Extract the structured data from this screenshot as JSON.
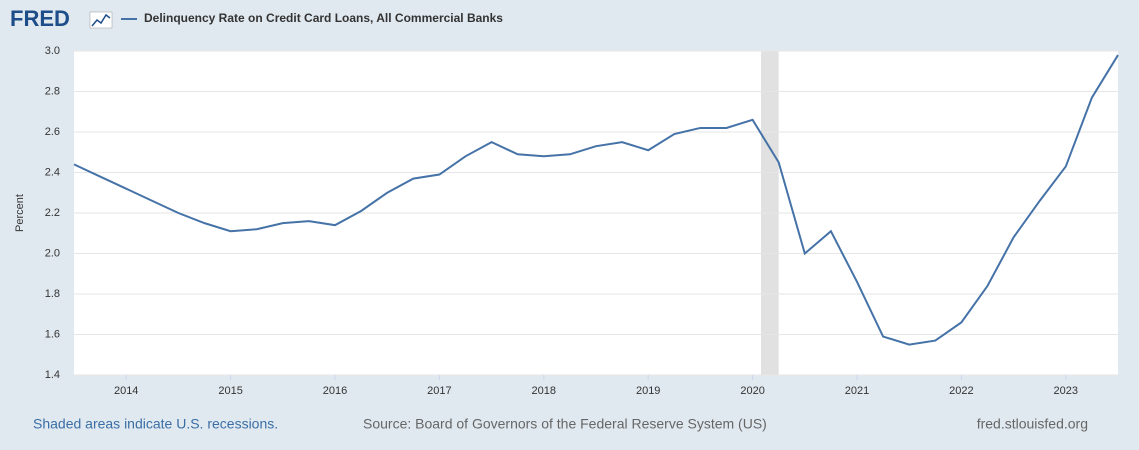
{
  "logo": "FRED",
  "footer": {
    "recessions_note": "Shaded areas indicate U.S. recessions.",
    "source": "Source: Board of Governors of the Federal Reserve System (US)",
    "site": "fred.stlouisfed.org"
  },
  "chart_data": {
    "type": "line",
    "y_label": "Percent",
    "x": [
      2013.5,
      2013.75,
      2014,
      2014.25,
      2014.5,
      2014.75,
      2015,
      2015.25,
      2015.5,
      2015.75,
      2016,
      2016.25,
      2016.5,
      2016.75,
      2017,
      2017.25,
      2017.5,
      2017.75,
      2018,
      2018.25,
      2018.5,
      2018.75,
      2019,
      2019.25,
      2019.5,
      2019.75,
      2020,
      2020.25,
      2020.5,
      2020.75,
      2021,
      2021.25,
      2021.5,
      2021.75,
      2022,
      2022.25,
      2022.5,
      2022.75,
      2023,
      2023.25,
      2023.5
    ],
    "series": [
      {
        "name": "Delinquency Rate on Credit Card Loans, All Commercial Banks",
        "color": "#4572a7",
        "values": [
          2.44,
          2.38,
          2.32,
          2.26,
          2.2,
          2.15,
          2.11,
          2.12,
          2.15,
          2.16,
          2.14,
          2.21,
          2.3,
          2.37,
          2.39,
          2.48,
          2.55,
          2.49,
          2.48,
          2.49,
          2.53,
          2.55,
          2.51,
          2.59,
          2.62,
          2.62,
          2.66,
          2.45,
          2.0,
          2.11,
          1.86,
          1.59,
          1.55,
          1.57,
          1.66,
          1.84,
          2.08,
          2.26,
          2.43,
          2.77,
          2.98
        ]
      }
    ],
    "recessions": [
      [
        2020.08,
        2020.25
      ]
    ],
    "recession_color": "#e1e1e1",
    "xlim": [
      2013.5,
      2023.5
    ],
    "xticks": [
      2014,
      2015,
      2016,
      2017,
      2018,
      2019,
      2020,
      2021,
      2022,
      2023
    ],
    "ylim": [
      1.4,
      3.0
    ],
    "yticks": [
      {
        "value": 1.4,
        "label": "1.4"
      },
      {
        "value": 1.6,
        "label": "1.6"
      },
      {
        "value": 1.8,
        "label": "1.8"
      },
      {
        "value": 2.0,
        "label": "2.0"
      },
      {
        "value": 2.2,
        "label": "2.2"
      },
      {
        "value": 2.4,
        "label": "2.4"
      },
      {
        "value": 2.6,
        "label": "2.6"
      },
      {
        "value": 2.8,
        "label": "2.8"
      },
      {
        "value": 3.0,
        "label": "3.0"
      }
    ],
    "grid": true
  }
}
